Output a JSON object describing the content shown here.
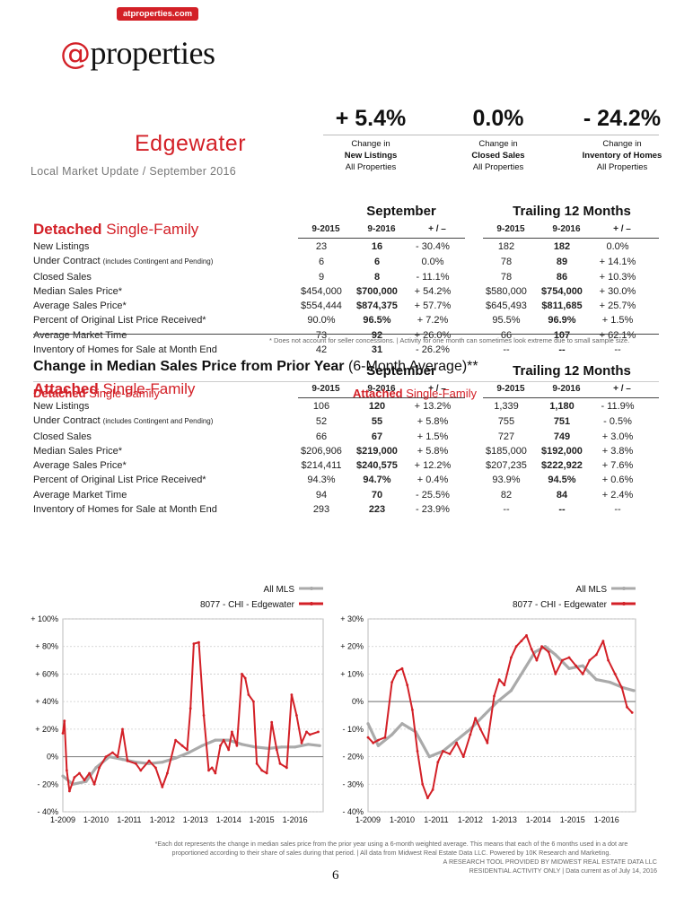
{
  "badge": "atproperties.com",
  "logo": {
    "at": "@",
    "word": "properties"
  },
  "headline": {
    "city": "Edgewater",
    "update": "Local Market Update / September 2016",
    "metrics": [
      {
        "value": "+ 5.4%",
        "line1": "Change in",
        "line2": "New Listings",
        "line3": "All Properties"
      },
      {
        "value": "0.0%",
        "line1": "Change in",
        "line2": "Closed Sales",
        "line3": "All Properties"
      },
      {
        "value": "- 24.2%",
        "line1": "Change in",
        "line2": "Inventory of Homes",
        "line3": "All Properties"
      }
    ]
  },
  "tables": {
    "group_month": "September",
    "group_trailing": "Trailing 12 Months",
    "col_headers": [
      "9-2015",
      "9-2016",
      "+ / –",
      "9-2015",
      "9-2016",
      "+ / –"
    ],
    "row_labels": [
      "New Listings",
      "Under Contract",
      "Closed Sales",
      "Median Sales Price*",
      "Average Sales Price*",
      "Percent of Original List Price Received*",
      "Average Market Time",
      "Inventory of Homes for Sale at Month End"
    ],
    "under_contract_note": "(includes Contingent and Pending)",
    "detached": {
      "title_bold": "Detached",
      "title_rest": " Single-Family",
      "rows": [
        [
          "23",
          "16",
          "- 30.4%",
          "182",
          "182",
          "0.0%"
        ],
        [
          "6",
          "6",
          "0.0%",
          "78",
          "89",
          "+ 14.1%"
        ],
        [
          "9",
          "8",
          "- 11.1%",
          "78",
          "86",
          "+ 10.3%"
        ],
        [
          "$454,000",
          "$700,000",
          "+ 54.2%",
          "$580,000",
          "$754,000",
          "+ 30.0%"
        ],
        [
          "$554,444",
          "$874,375",
          "+ 57.7%",
          "$645,493",
          "$811,685",
          "+ 25.7%"
        ],
        [
          "90.0%",
          "96.5%",
          "+ 7.2%",
          "95.5%",
          "96.9%",
          "+ 1.5%"
        ],
        [
          "73",
          "92",
          "+ 26.0%",
          "66",
          "107",
          "+ 62.1%"
        ],
        [
          "42",
          "31",
          "- 26.2%",
          "--",
          "--",
          "--"
        ]
      ]
    },
    "attached": {
      "title_bold": "Attached",
      "title_rest": " Single-Family",
      "rows": [
        [
          "106",
          "120",
          "+ 13.2%",
          "1,339",
          "1,180",
          "- 11.9%"
        ],
        [
          "52",
          "55",
          "+ 5.8%",
          "755",
          "751",
          "- 0.5%"
        ],
        [
          "66",
          "67",
          "+ 1.5%",
          "727",
          "749",
          "+ 3.0%"
        ],
        [
          "$206,906",
          "$219,000",
          "+ 5.8%",
          "$185,000",
          "$192,000",
          "+ 3.8%"
        ],
        [
          "$214,411",
          "$240,575",
          "+ 12.2%",
          "$207,235",
          "$222,922",
          "+ 7.6%"
        ],
        [
          "94.3%",
          "94.7%",
          "+ 0.4%",
          "93.9%",
          "94.5%",
          "+ 0.6%"
        ],
        [
          "94",
          "70",
          "- 25.5%",
          "82",
          "84",
          "+ 2.4%"
        ],
        [
          "293",
          "223",
          "- 23.9%",
          "--",
          "--",
          "--"
        ]
      ]
    },
    "note": "* Does not account for seller concessions.  |  Activity for one month can sometimes look extreme due to small sample size."
  },
  "charts_title": {
    "bold": "Change in Median Sales Price from Prior Year",
    "rest": " (6-Month Average)**"
  },
  "chart_data": [
    {
      "type": "line",
      "title_bold": "Detached",
      "title_rest": " Single-Family",
      "legend": [
        "All MLS",
        "8077 - CHI - Edgewater"
      ],
      "yticks": [
        "+ 100%",
        "+ 80%",
        "+ 60%",
        "+ 40%",
        "+ 20%",
        "0%",
        "- 20%",
        "- 40%"
      ],
      "ylim": [
        -40,
        100
      ],
      "xticks": [
        "1-2009",
        "1-2010",
        "1-2011",
        "1-2012",
        "1-2013",
        "1-2014",
        "1-2015",
        "1-2016"
      ],
      "xlim": [
        2009.0,
        2016.85
      ],
      "series": [
        {
          "name": "All MLS",
          "color": "#aaaaaa",
          "points": [
            [
              2009.0,
              -14
            ],
            [
              2009.3,
              -20
            ],
            [
              2009.7,
              -18
            ],
            [
              2010.0,
              -8
            ],
            [
              2010.4,
              0
            ],
            [
              2010.8,
              -2
            ],
            [
              2011.2,
              -4
            ],
            [
              2011.6,
              -5
            ],
            [
              2012.0,
              -4
            ],
            [
              2012.4,
              -1
            ],
            [
              2012.8,
              3
            ],
            [
              2013.2,
              8
            ],
            [
              2013.6,
              12
            ],
            [
              2014.0,
              12
            ],
            [
              2014.4,
              9
            ],
            [
              2014.8,
              7
            ],
            [
              2015.2,
              6
            ],
            [
              2015.6,
              7
            ],
            [
              2016.0,
              7
            ],
            [
              2016.4,
              9
            ],
            [
              2016.75,
              8
            ]
          ]
        },
        {
          "name": "8077 - CHI - Edgewater",
          "color": "#d32027",
          "points": [
            [
              2009.0,
              17
            ],
            [
              2009.05,
              26
            ],
            [
              2009.12,
              -10
            ],
            [
              2009.2,
              -25
            ],
            [
              2009.35,
              -15
            ],
            [
              2009.5,
              -12
            ],
            [
              2009.65,
              -17
            ],
            [
              2009.8,
              -12
            ],
            [
              2009.95,
              -20
            ],
            [
              2010.1,
              -8
            ],
            [
              2010.3,
              0
            ],
            [
              2010.5,
              3
            ],
            [
              2010.65,
              0
            ],
            [
              2010.8,
              20
            ],
            [
              2010.95,
              -3
            ],
            [
              2011.2,
              -5
            ],
            [
              2011.35,
              -10
            ],
            [
              2011.6,
              -3
            ],
            [
              2011.8,
              -8
            ],
            [
              2012.0,
              -22
            ],
            [
              2012.15,
              -12
            ],
            [
              2012.4,
              12
            ],
            [
              2012.6,
              8
            ],
            [
              2012.75,
              5
            ],
            [
              2012.85,
              35
            ],
            [
              2012.95,
              82
            ],
            [
              2013.1,
              83
            ],
            [
              2013.25,
              30
            ],
            [
              2013.4,
              -10
            ],
            [
              2013.5,
              -8
            ],
            [
              2013.6,
              -12
            ],
            [
              2013.75,
              8
            ],
            [
              2013.85,
              12
            ],
            [
              2014.0,
              5
            ],
            [
              2014.1,
              18
            ],
            [
              2014.25,
              8
            ],
            [
              2014.4,
              60
            ],
            [
              2014.5,
              57
            ],
            [
              2014.6,
              45
            ],
            [
              2014.75,
              40
            ],
            [
              2014.85,
              -5
            ],
            [
              2015.0,
              -10
            ],
            [
              2015.15,
              -12
            ],
            [
              2015.3,
              25
            ],
            [
              2015.45,
              5
            ],
            [
              2015.55,
              -5
            ],
            [
              2015.75,
              -8
            ],
            [
              2015.9,
              45
            ],
            [
              2016.05,
              30
            ],
            [
              2016.2,
              10
            ],
            [
              2016.35,
              18
            ],
            [
              2016.45,
              16
            ],
            [
              2016.7,
              18
            ]
          ]
        }
      ]
    },
    {
      "type": "line",
      "title_bold": "Attached",
      "title_rest": " Single-Family",
      "legend": [
        "All MLS",
        "8077 - CHI - Edgewater"
      ],
      "yticks": [
        "+ 30%",
        "+ 20%",
        "+ 10%",
        "0%",
        "- 10%",
        "- 20%",
        "- 30%",
        "- 40%"
      ],
      "ylim": [
        -40,
        30
      ],
      "xticks": [
        "1-2009",
        "1-2010",
        "1-2011",
        "1-2012",
        "1-2013",
        "1-2014",
        "1-2015",
        "1-2016"
      ],
      "xlim": [
        2009.0,
        2016.85
      ],
      "series": [
        {
          "name": "All MLS",
          "color": "#aaaaaa",
          "points": [
            [
              2009.0,
              -8
            ],
            [
              2009.3,
              -16
            ],
            [
              2009.7,
              -12
            ],
            [
              2010.0,
              -8
            ],
            [
              2010.4,
              -11
            ],
            [
              2010.8,
              -20
            ],
            [
              2011.2,
              -18
            ],
            [
              2011.6,
              -14
            ],
            [
              2012.0,
              -10
            ],
            [
              2012.4,
              -5
            ],
            [
              2012.8,
              0
            ],
            [
              2013.2,
              4
            ],
            [
              2013.6,
              12
            ],
            [
              2013.9,
              18
            ],
            [
              2014.2,
              20
            ],
            [
              2014.5,
              17
            ],
            [
              2014.9,
              12
            ],
            [
              2015.3,
              13
            ],
            [
              2015.7,
              8
            ],
            [
              2016.1,
              7
            ],
            [
              2016.5,
              5
            ],
            [
              2016.8,
              4
            ]
          ]
        },
        {
          "name": "8077 - CHI - Edgewater",
          "color": "#d32027",
          "points": [
            [
              2009.0,
              -13
            ],
            [
              2009.15,
              -15
            ],
            [
              2009.3,
              -14
            ],
            [
              2009.5,
              -13
            ],
            [
              2009.7,
              7
            ],
            [
              2009.85,
              11
            ],
            [
              2010.0,
              12
            ],
            [
              2010.15,
              6
            ],
            [
              2010.3,
              -3
            ],
            [
              2010.45,
              -18
            ],
            [
              2010.6,
              -30
            ],
            [
              2010.75,
              -35
            ],
            [
              2010.9,
              -32
            ],
            [
              2011.05,
              -22
            ],
            [
              2011.2,
              -18
            ],
            [
              2011.4,
              -19
            ],
            [
              2011.6,
              -15
            ],
            [
              2011.8,
              -20
            ],
            [
              2012.0,
              -12
            ],
            [
              2012.15,
              -6
            ],
            [
              2012.3,
              -10
            ],
            [
              2012.5,
              -15
            ],
            [
              2012.7,
              2
            ],
            [
              2012.85,
              8
            ],
            [
              2013.0,
              6
            ],
            [
              2013.2,
              16
            ],
            [
              2013.35,
              20
            ],
            [
              2013.5,
              22
            ],
            [
              2013.65,
              24
            ],
            [
              2013.8,
              19
            ],
            [
              2013.95,
              15
            ],
            [
              2014.1,
              20
            ],
            [
              2014.3,
              18
            ],
            [
              2014.5,
              10
            ],
            [
              2014.7,
              15
            ],
            [
              2014.9,
              16
            ],
            [
              2015.1,
              13
            ],
            [
              2015.3,
              10
            ],
            [
              2015.5,
              15
            ],
            [
              2015.7,
              17
            ],
            [
              2015.9,
              22
            ],
            [
              2016.05,
              15
            ],
            [
              2016.25,
              10
            ],
            [
              2016.45,
              5
            ],
            [
              2016.6,
              -2
            ],
            [
              2016.75,
              -4
            ]
          ]
        }
      ]
    }
  ],
  "footnotes": {
    "line1": "*Each dot represents the change in median sales price from the prior year using a 6-month weighted average. This means that each of the 6 months used in a dot are",
    "line2": "proportioned according to their share of sales during that period.  |  All data from Midwest Real Estate Data LLC. Powered by 10K Research and Marketing.",
    "line3": "A RESEARCH TOOL PROVIDED BY MIDWEST REAL ESTATE DATA LLC",
    "line4": "RESIDENTIAL ACTIVITY ONLY  |  Data current as of July 14, 2016"
  },
  "page_number": "6"
}
